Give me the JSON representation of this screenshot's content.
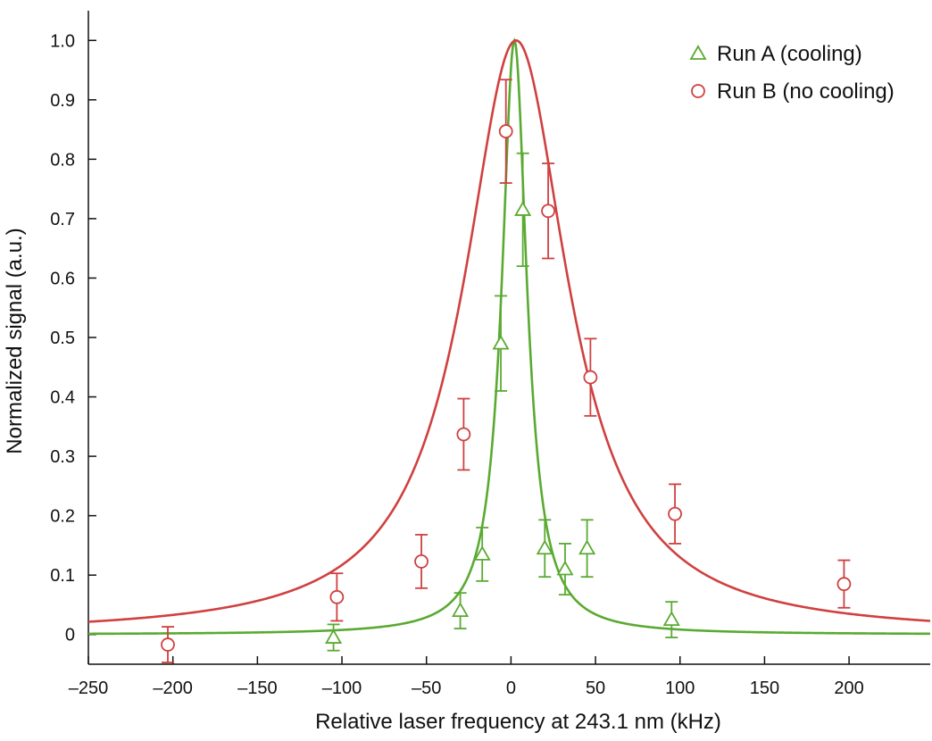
{
  "chart_data": {
    "type": "scatter",
    "xlabel": "Relative laser frequency at 243.1 nm (kHz)",
    "ylabel": "Normalized signal (a.u.)",
    "xlim": [
      -250,
      248
    ],
    "ylim": [
      -0.05,
      1.05
    ],
    "x_ticks": [
      -250,
      -200,
      -150,
      -100,
      -50,
      0,
      50,
      100,
      150,
      200
    ],
    "x_tick_labels": [
      "–250",
      "–200",
      "–150",
      "–100",
      "–50",
      "0",
      "50",
      "100",
      "150",
      "200"
    ],
    "y_ticks": [
      0,
      0.1,
      0.2,
      0.3,
      0.4,
      0.5,
      0.6,
      0.7,
      0.8,
      0.9,
      1.0
    ],
    "y_tick_labels": [
      "0",
      "0.1",
      "0.2",
      "0.3",
      "0.4",
      "0.5",
      "0.6",
      "0.7",
      "0.8",
      "0.9",
      "1.0"
    ],
    "grid": false,
    "legend": "top-right",
    "series": [
      {
        "name": "Run A (cooling)",
        "marker": "triangle",
        "color": "#5aaa32",
        "points": [
          {
            "x": -105,
            "y": -0.005,
            "err": 0.022
          },
          {
            "x": -30,
            "y": 0.04,
            "err": 0.03
          },
          {
            "x": -17,
            "y": 0.135,
            "err": 0.045
          },
          {
            "x": -6,
            "y": 0.49,
            "err": 0.08
          },
          {
            "x": 7,
            "y": 0.715,
            "err": 0.095
          },
          {
            "x": 20,
            "y": 0.145,
            "err": 0.048
          },
          {
            "x": 32,
            "y": 0.11,
            "err": 0.043
          },
          {
            "x": 45,
            "y": 0.145,
            "err": 0.048
          },
          {
            "x": 95,
            "y": 0.025,
            "err": 0.03
          }
        ],
        "fit": {
          "shape": "lorentzian",
          "center": 2,
          "fwhm": 18,
          "amplitude": 1.0
        }
      },
      {
        "name": "Run B (no cooling)",
        "marker": "circle",
        "color": "#d04040",
        "points": [
          {
            "x": -203,
            "y": -0.017,
            "err": 0.03
          },
          {
            "x": -103,
            "y": 0.063,
            "err": 0.04
          },
          {
            "x": -53,
            "y": 0.123,
            "err": 0.045
          },
          {
            "x": -28,
            "y": 0.337,
            "err": 0.06
          },
          {
            "x": -3,
            "y": 0.847,
            "err": 0.087
          },
          {
            "x": 22,
            "y": 0.713,
            "err": 0.08
          },
          {
            "x": 47,
            "y": 0.433,
            "err": 0.065
          },
          {
            "x": 97,
            "y": 0.203,
            "err": 0.05
          },
          {
            "x": 197,
            "y": 0.085,
            "err": 0.04
          }
        ],
        "fit": {
          "shape": "lorentzian",
          "center": 3,
          "fwhm": 75,
          "amplitude": 1.0
        }
      }
    ]
  }
}
